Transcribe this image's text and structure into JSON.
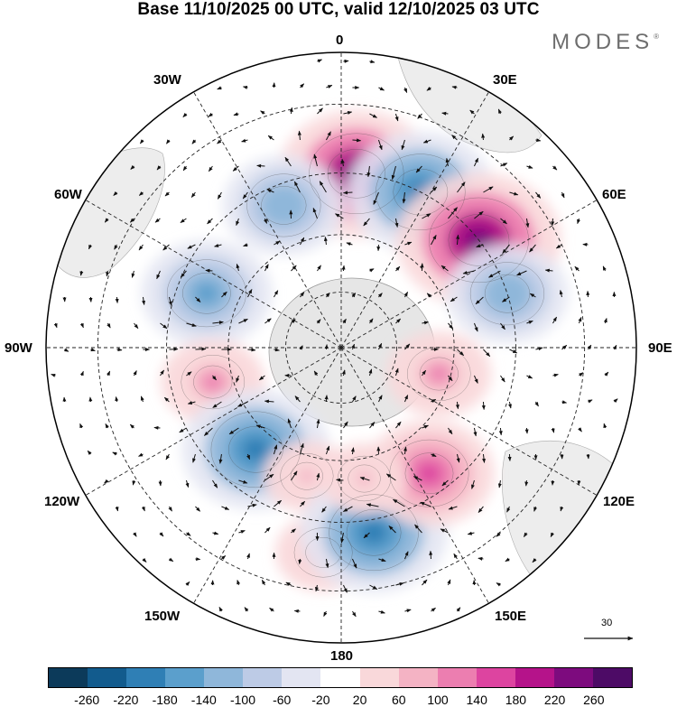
{
  "title": "Base 11/10/2025 00 UTC, valid 12/10/2025 03 UTC",
  "brand": "MODES",
  "brand_mark": "®",
  "longitude_labels": {
    "top": "0",
    "top_left": "30W",
    "top_right": "30E",
    "left_upper": "60W",
    "right_upper": "60E",
    "left": "90W",
    "right": "90E",
    "left_lower": "120W",
    "right_lower": "120E",
    "bottom_left": "150W",
    "bottom_right": "150E",
    "bottom": "180"
  },
  "reference_vector": "30",
  "colorbar": {
    "tick_labels": [
      "-260",
      "-220",
      "-180",
      "-140",
      "-100",
      "-60",
      "-20",
      "20",
      "60",
      "100",
      "140",
      "180",
      "220",
      "260"
    ],
    "colors": [
      "#0c3a5a",
      "#125b8d",
      "#2f7fb5",
      "#5b9fcc",
      "#8fb7da",
      "#bdcbe6",
      "#e3e5f2",
      "#ffffff",
      "#f9d8da",
      "#f4b3c4",
      "#ec7eb0",
      "#dd44a0",
      "#b5138a",
      "#7d0b7e",
      "#4d0b66"
    ]
  },
  "chart_data": {
    "type": "contour_map",
    "projection": "south polar stereographic",
    "field_units_range": [
      -260,
      260
    ],
    "anomalies": [
      {
        "lon": 5,
        "lat": -45,
        "value": 220
      },
      {
        "lon": 27,
        "lat": -45,
        "value": -200
      },
      {
        "lon": 52,
        "lat": -45,
        "value": 240
      },
      {
        "lon": 72,
        "lat": -45,
        "value": -140
      },
      {
        "lon": -22,
        "lat": -50,
        "value": -140
      },
      {
        "lon": -68,
        "lat": -52,
        "value": -160
      },
      {
        "lon": -105,
        "lat": -55,
        "value": 100
      },
      {
        "lon": -140,
        "lat": -55,
        "value": -200
      },
      {
        "lon": -165,
        "lat": -55,
        "value": 60
      },
      {
        "lon": -175,
        "lat": -38,
        "value": 80
      },
      {
        "lon": 170,
        "lat": -42,
        "value": -200
      },
      {
        "lon": 145,
        "lat": -50,
        "value": 160
      },
      {
        "lon": 105,
        "lat": -63,
        "value": 100
      },
      {
        "lon": 170,
        "lat": -55,
        "value": 60
      }
    ]
  }
}
